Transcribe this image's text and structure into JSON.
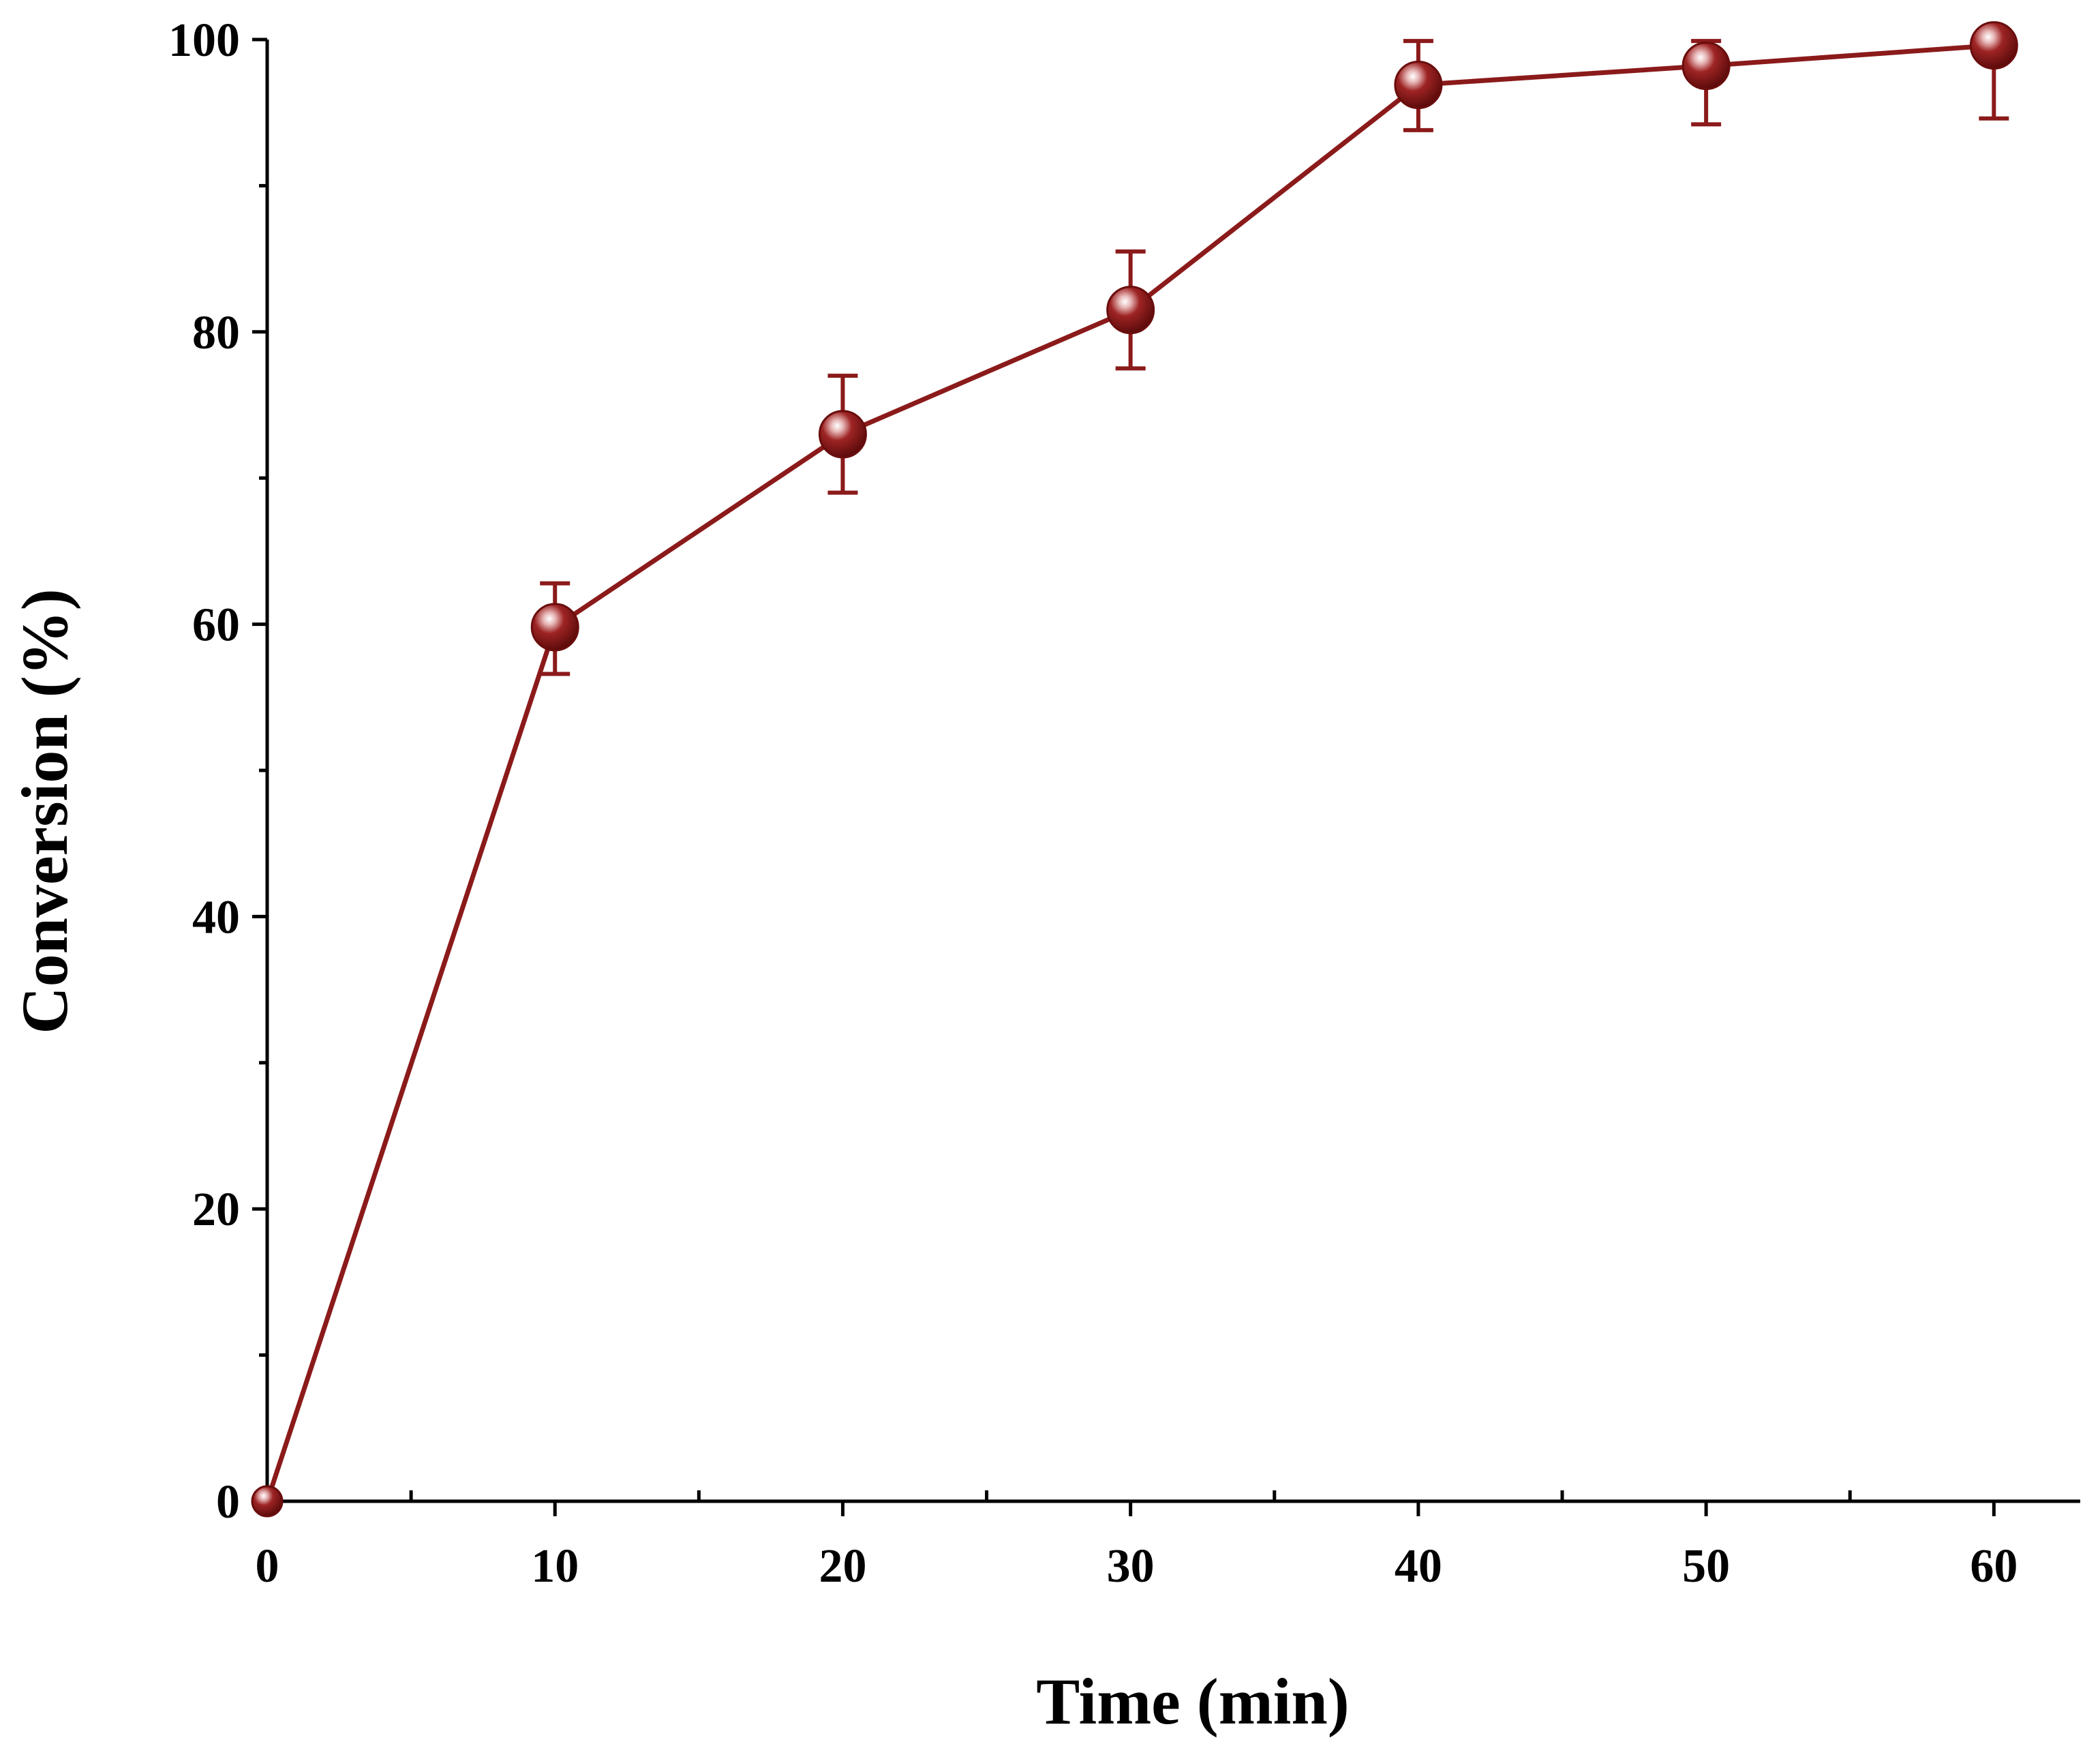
{
  "chart_data": {
    "type": "line",
    "title": "",
    "xlabel": "Time (min)",
    "ylabel": "Conversion (%)",
    "xlim": [
      0,
      63
    ],
    "ylim": [
      0,
      100
    ],
    "x_major_ticks": [
      0,
      10,
      20,
      30,
      40,
      50,
      60
    ],
    "x_minor_ticks": [
      5,
      15,
      25,
      35,
      45,
      55
    ],
    "y_major_ticks": [
      0,
      20,
      40,
      60,
      80,
      100
    ],
    "y_minor_ticks": [
      10,
      30,
      50,
      70,
      90
    ],
    "grid": false,
    "legend": null,
    "series": [
      {
        "name": "Conversion",
        "color": "#8B1A1A",
        "marker": "circle",
        "x": [
          0,
          10,
          20,
          30,
          40,
          50,
          60
        ],
        "values": [
          0,
          59.8,
          73.0,
          81.5,
          96.9,
          98.2,
          99.6
        ],
        "error_low": [
          0,
          3.2,
          4.0,
          4.0,
          3.1,
          4.0,
          5.0
        ],
        "error_high": [
          0,
          3.0,
          4.0,
          4.0,
          3.0,
          1.7,
          0.4
        ]
      }
    ]
  }
}
